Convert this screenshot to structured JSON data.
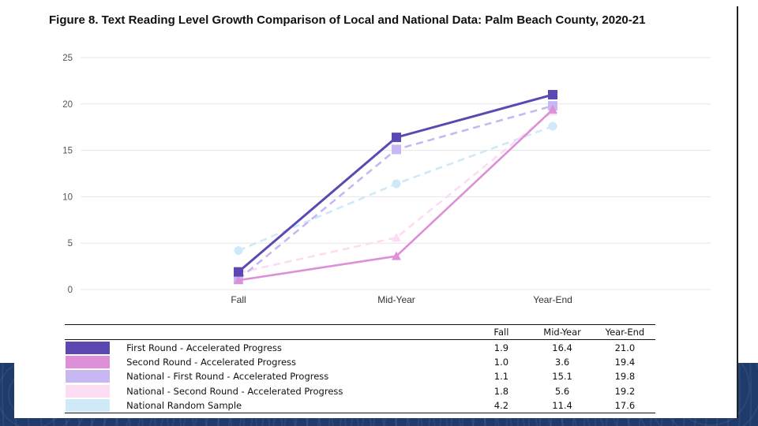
{
  "figure": {
    "title": "Figure 8. Text Reading Level Growth Comparison of Local and National Data: Palm Beach County, 2020-21"
  },
  "chart_data": {
    "type": "line",
    "categories": [
      "Fall",
      "Mid-Year",
      "Year-End"
    ],
    "ylim": [
      0,
      25
    ],
    "yticks": [
      0,
      5,
      10,
      15,
      20,
      25
    ],
    "grid": true,
    "legend": "table below chart",
    "series": [
      {
        "name": "First Round - Accelerated Progress",
        "values": [
          1.9,
          16.4,
          21.0
        ],
        "labels": [
          "1.9",
          "16.4",
          "21.0"
        ],
        "color": "#5b48b3",
        "dash": false,
        "marker": "square"
      },
      {
        "name": "Second Round - Accelerated Progress",
        "values": [
          1.0,
          3.6,
          19.4
        ],
        "labels": [
          "1.0",
          "3.6",
          "19.4"
        ],
        "color": "#dd8fd7",
        "dash": false,
        "marker": "triangle"
      },
      {
        "name": "National - First Round - Accelerated Progress",
        "values": [
          1.1,
          15.1,
          19.8
        ],
        "labels": [
          "1.1",
          "15.1",
          "19.8"
        ],
        "color": "#c7b7f3",
        "dash": true,
        "marker": "square"
      },
      {
        "name": "National - Second Round - Accelerated Progress",
        "values": [
          1.8,
          5.6,
          19.2
        ],
        "labels": [
          "1.8",
          "5.6",
          "19.2"
        ],
        "color": "#fbdcf2",
        "dash": true,
        "marker": "triangle"
      },
      {
        "name": "National Random Sample",
        "values": [
          4.2,
          11.4,
          17.6
        ],
        "labels": [
          "4.2",
          "11.4",
          "17.6"
        ],
        "color": "#cfe9f8",
        "dash": true,
        "marker": "circle"
      }
    ]
  },
  "table": {
    "headers": [
      "Fall",
      "Mid-Year",
      "Year-End"
    ]
  }
}
